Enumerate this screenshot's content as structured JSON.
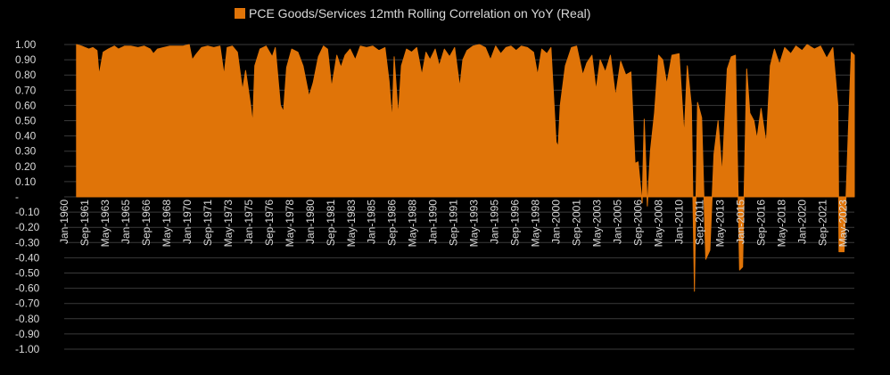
{
  "chart_data": {
    "type": "area",
    "title": "PCE Goods/Services 12mth Rolling Correlation on YoY (Real)",
    "legend": {
      "position": "top",
      "entries": [
        "PCE Goods/Services 12mth Rolling Correlation on YoY (Real)"
      ]
    },
    "colors": {
      "series": "#E07408",
      "background": "#000000",
      "text": "#D9D9D9",
      "grid": "#3A3A3A"
    },
    "grid": true,
    "ylim": [
      -1.0,
      1.0
    ],
    "y_tick_labels": [
      "1.00",
      "0.90",
      "0.80",
      "0.70",
      "0.60",
      "0.50",
      "0.40",
      "0.30",
      "0.20",
      "0.10",
      "-",
      "-0.10",
      "-0.20",
      "-0.30",
      "-0.40",
      "-0.50",
      "-0.60",
      "-0.70",
      "-0.80",
      "-0.90",
      "-1.00"
    ],
    "x_range": [
      "1960-01",
      "2024-04"
    ],
    "x_tick_labels": [
      "Jan-1960",
      "Sep-1961",
      "May-1963",
      "Jan-1965",
      "Sep-1966",
      "May-1968",
      "Jan-1970",
      "Sep-1971",
      "May-1973",
      "Jan-1975",
      "Sep-1976",
      "May-1978",
      "Jan-1980",
      "Sep-1981",
      "May-1983",
      "Jan-1985",
      "Sep-1986",
      "May-1988",
      "Jan-1990",
      "Sep-1991",
      "May-1993",
      "Jan-1995",
      "Sep-1996",
      "May-1998",
      "Jan-2000",
      "Sep-2001",
      "May-2003",
      "Jan-2005",
      "Sep-2006",
      "May-2008",
      "Jan-2010",
      "Sep-2011",
      "May-2013",
      "Jan-2015",
      "Sep-2016",
      "May-2018",
      "Jan-2020",
      "Sep-2021",
      "May-2023"
    ],
    "series": [
      {
        "name": "PCE Goods/Services 12mth Rolling Correlation on YoY (Real)",
        "points": [
          [
            "1961-01",
            1.0
          ],
          [
            "1961-06",
            0.99
          ],
          [
            "1962-01",
            0.97
          ],
          [
            "1962-05",
            0.98
          ],
          [
            "1962-09",
            0.96
          ],
          [
            "1962-11",
            0.8
          ],
          [
            "1963-03",
            0.95
          ],
          [
            "1963-08",
            0.97
          ],
          [
            "1964-02",
            0.99
          ],
          [
            "1964-06",
            0.97
          ],
          [
            "1964-12",
            0.99
          ],
          [
            "1965-06",
            0.99
          ],
          [
            "1966-01",
            0.98
          ],
          [
            "1966-07",
            0.99
          ],
          [
            "1967-01",
            0.97
          ],
          [
            "1967-04",
            0.94
          ],
          [
            "1967-08",
            0.97
          ],
          [
            "1968-02",
            0.98
          ],
          [
            "1968-08",
            0.99
          ],
          [
            "1969-03",
            0.99
          ],
          [
            "1969-09",
            0.99
          ],
          [
            "1970-03",
            1.0
          ],
          [
            "1970-06",
            0.9
          ],
          [
            "1970-09",
            0.93
          ],
          [
            "1971-03",
            0.98
          ],
          [
            "1971-09",
            0.99
          ],
          [
            "1972-03",
            0.98
          ],
          [
            "1972-09",
            0.99
          ],
          [
            "1973-01",
            0.8
          ],
          [
            "1973-04",
            0.98
          ],
          [
            "1973-09",
            0.99
          ],
          [
            "1974-02",
            0.95
          ],
          [
            "1974-07",
            0.7
          ],
          [
            "1974-10",
            0.83
          ],
          [
            "1975-03",
            0.6
          ],
          [
            "1975-05",
            0.48
          ],
          [
            "1975-07",
            0.86
          ],
          [
            "1975-12",
            0.97
          ],
          [
            "1976-06",
            0.99
          ],
          [
            "1976-12",
            0.92
          ],
          [
            "1977-03",
            0.98
          ],
          [
            "1977-08",
            0.6
          ],
          [
            "1977-11",
            0.56
          ],
          [
            "1978-02",
            0.85
          ],
          [
            "1978-07",
            0.97
          ],
          [
            "1979-01",
            0.95
          ],
          [
            "1979-06",
            0.86
          ],
          [
            "1979-12",
            0.66
          ],
          [
            "1980-04",
            0.75
          ],
          [
            "1980-09",
            0.92
          ],
          [
            "1981-02",
            0.99
          ],
          [
            "1981-06",
            0.97
          ],
          [
            "1981-10",
            0.72
          ],
          [
            "1982-03",
            0.93
          ],
          [
            "1982-07",
            0.85
          ],
          [
            "1982-11",
            0.93
          ],
          [
            "1983-04",
            0.97
          ],
          [
            "1983-09",
            0.9
          ],
          [
            "1984-02",
            0.99
          ],
          [
            "1984-08",
            0.98
          ],
          [
            "1985-02",
            0.99
          ],
          [
            "1985-08",
            0.96
          ],
          [
            "1986-02",
            0.98
          ],
          [
            "1986-06",
            0.76
          ],
          [
            "1986-09",
            0.5
          ],
          [
            "1986-11",
            0.92
          ],
          [
            "1987-03",
            0.53
          ],
          [
            "1987-06",
            0.86
          ],
          [
            "1987-11",
            0.97
          ],
          [
            "1988-04",
            0.95
          ],
          [
            "1988-09",
            0.98
          ],
          [
            "1989-02",
            0.8
          ],
          [
            "1989-06",
            0.95
          ],
          [
            "1989-10",
            0.9
          ],
          [
            "1990-03",
            0.97
          ],
          [
            "1990-07",
            0.86
          ],
          [
            "1990-12",
            0.97
          ],
          [
            "1991-05",
            0.92
          ],
          [
            "1991-10",
            0.98
          ],
          [
            "1992-03",
            0.72
          ],
          [
            "1992-06",
            0.9
          ],
          [
            "1992-10",
            0.96
          ],
          [
            "1993-04",
            0.99
          ],
          [
            "1993-10",
            1.0
          ],
          [
            "1994-04",
            0.98
          ],
          [
            "1994-09",
            0.9
          ],
          [
            "1995-02",
            0.99
          ],
          [
            "1995-07",
            0.94
          ],
          [
            "1995-12",
            0.98
          ],
          [
            "1996-05",
            0.99
          ],
          [
            "1996-10",
            0.96
          ],
          [
            "1997-03",
            0.99
          ],
          [
            "1997-09",
            0.98
          ],
          [
            "1998-03",
            0.95
          ],
          [
            "1998-07",
            0.8
          ],
          [
            "1998-11",
            0.97
          ],
          [
            "1999-04",
            0.94
          ],
          [
            "1999-08",
            0.98
          ],
          [
            "2000-01",
            0.36
          ],
          [
            "2000-03",
            0.33
          ],
          [
            "2000-05",
            0.6
          ],
          [
            "2000-10",
            0.86
          ],
          [
            "2001-04",
            0.98
          ],
          [
            "2001-09",
            0.99
          ],
          [
            "2002-03",
            0.8
          ],
          [
            "2002-07",
            0.88
          ],
          [
            "2002-12",
            0.93
          ],
          [
            "2003-04",
            0.7
          ],
          [
            "2003-08",
            0.9
          ],
          [
            "2004-01",
            0.82
          ],
          [
            "2004-06",
            0.93
          ],
          [
            "2004-11",
            0.66
          ],
          [
            "2005-04",
            0.89
          ],
          [
            "2005-09",
            0.8
          ],
          [
            "2006-02",
            0.82
          ],
          [
            "2006-06",
            0.22
          ],
          [
            "2006-09",
            0.23
          ],
          [
            "2007-01",
            -0.04
          ],
          [
            "2007-03",
            0.51
          ],
          [
            "2007-06",
            -0.06
          ],
          [
            "2007-09",
            0.3
          ],
          [
            "2008-01",
            0.55
          ],
          [
            "2008-05",
            0.93
          ],
          [
            "2008-09",
            0.9
          ],
          [
            "2009-01",
            0.74
          ],
          [
            "2009-06",
            0.93
          ],
          [
            "2010-01",
            0.94
          ],
          [
            "2010-06",
            0.4
          ],
          [
            "2010-09",
            0.86
          ],
          [
            "2011-01",
            0.6
          ],
          [
            "2011-04",
            -0.62
          ],
          [
            "2011-07",
            0.62
          ],
          [
            "2011-11",
            0.52
          ],
          [
            "2012-03",
            -0.41
          ],
          [
            "2012-07",
            -0.35
          ],
          [
            "2012-11",
            0.28
          ],
          [
            "2013-03",
            0.5
          ],
          [
            "2013-07",
            0.15
          ],
          [
            "2013-12",
            0.84
          ],
          [
            "2014-04",
            0.92
          ],
          [
            "2014-08",
            0.93
          ],
          [
            "2014-12",
            -0.48
          ],
          [
            "2015-03",
            -0.46
          ],
          [
            "2015-07",
            0.84
          ],
          [
            "2015-10",
            0.55
          ],
          [
            "2016-02",
            0.5
          ],
          [
            "2016-05",
            0.38
          ],
          [
            "2016-09",
            0.58
          ],
          [
            "2017-02",
            0.35
          ],
          [
            "2017-06",
            0.86
          ],
          [
            "2017-10",
            0.97
          ],
          [
            "2018-03",
            0.87
          ],
          [
            "2018-08",
            0.98
          ],
          [
            "2019-02",
            0.94
          ],
          [
            "2019-07",
            0.99
          ],
          [
            "2020-01",
            0.96
          ],
          [
            "2020-06",
            1.0
          ],
          [
            "2021-01",
            0.97
          ],
          [
            "2021-07",
            0.99
          ],
          [
            "2022-01",
            0.91
          ],
          [
            "2022-07",
            0.98
          ],
          [
            "2022-12",
            0.6
          ],
          [
            "2023-01",
            -0.36
          ],
          [
            "2023-06",
            -0.36
          ],
          [
            "2023-10",
            0.4
          ],
          [
            "2024-01",
            0.95
          ],
          [
            "2024-04",
            0.93
          ]
        ]
      }
    ]
  }
}
